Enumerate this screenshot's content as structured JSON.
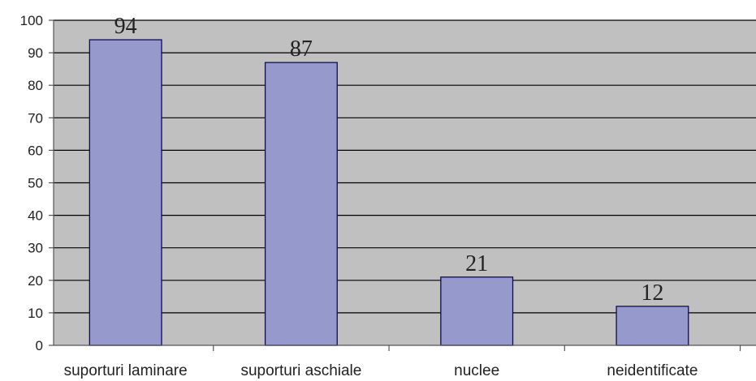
{
  "chart_data": {
    "type": "bar",
    "title": "",
    "xlabel": "",
    "ylabel": "",
    "categories": [
      "suporturi laminare",
      "suporturi aschiale",
      "nuclee",
      "neidentificate"
    ],
    "values": [
      94,
      87,
      21,
      12
    ],
    "data_labels": [
      "94",
      "87",
      "21",
      "12"
    ],
    "ylim": [
      0,
      100
    ],
    "yticks": [
      0,
      10,
      20,
      30,
      40,
      50,
      60,
      70,
      80,
      90,
      100
    ],
    "ytick_labels": [
      "0",
      "10",
      "20",
      "30",
      "40",
      "50",
      "60",
      "70",
      "80",
      "90",
      "100"
    ],
    "grid": true,
    "legend": "none",
    "colors": {
      "plot_background": "#c0c0c0",
      "bar_fill": "#9699cc",
      "bar_edge": "#0d0d50",
      "gridline": "#000000"
    }
  }
}
